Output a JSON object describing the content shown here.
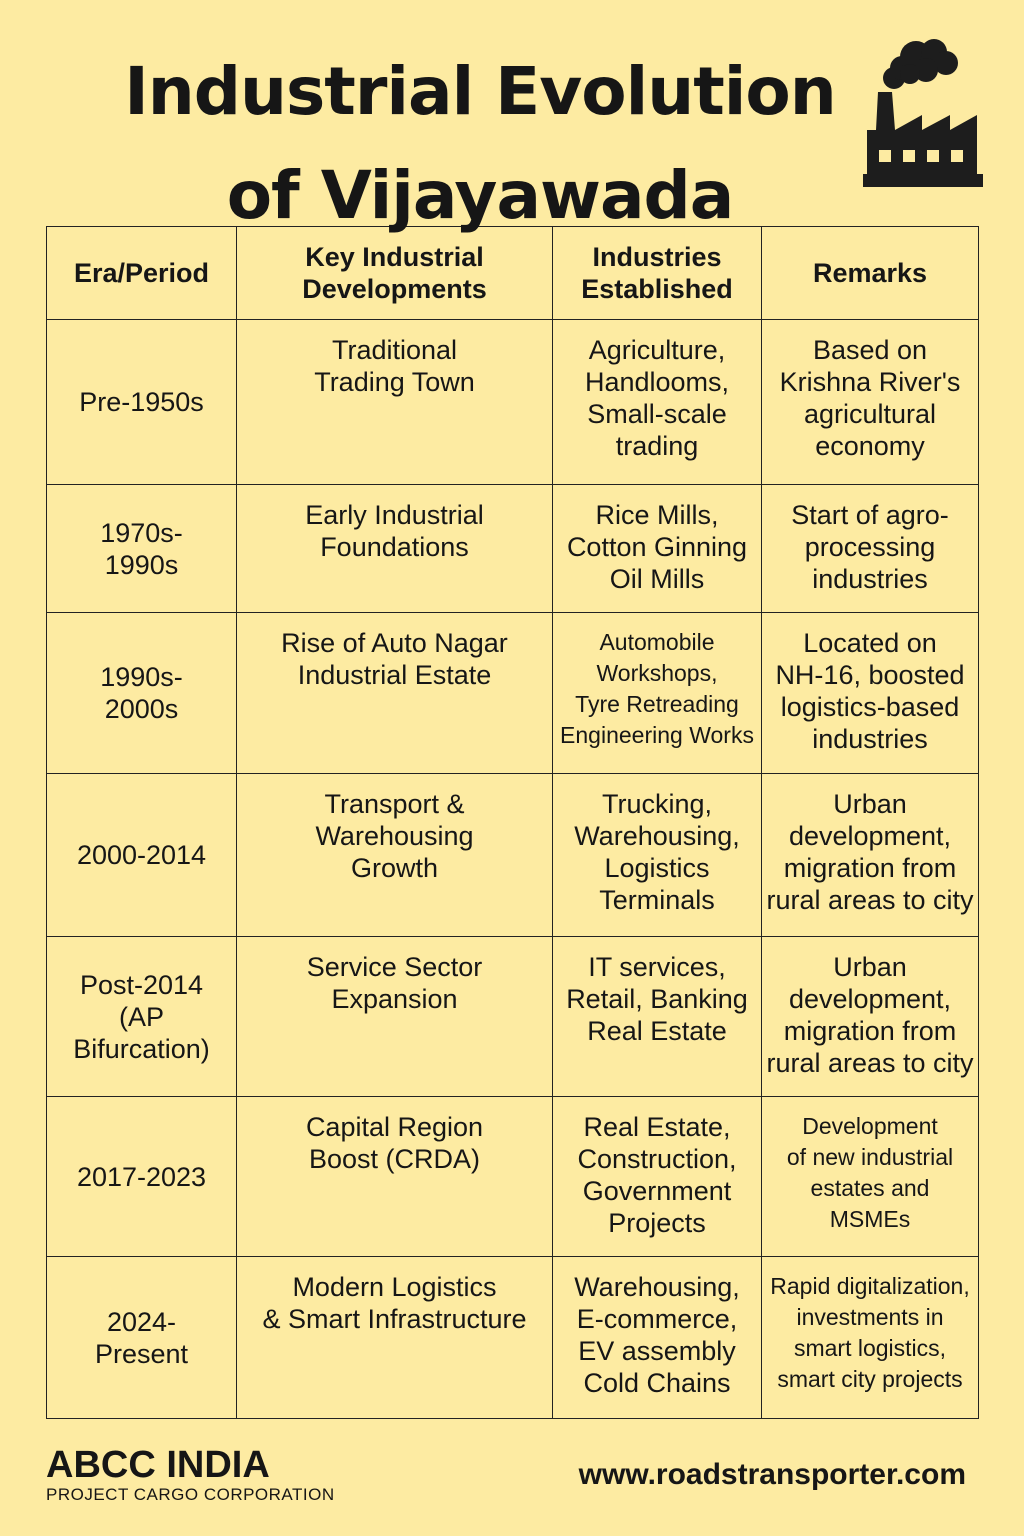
{
  "title": "Industrial Evolution\nof Vijayawada",
  "icon": "factory-icon",
  "colors": {
    "background": "#FDEBA2",
    "text": "#161616"
  },
  "table": {
    "headers": [
      "Era/Period",
      "Key Industrial\nDevelopments",
      "Industries\nEstablished",
      "Remarks"
    ],
    "rows": [
      [
        "Pre-1950s",
        "Traditional\nTrading Town",
        "Agriculture,\nHandlooms,\nSmall-scale\ntrading",
        "Based on\nKrishna River's\nagricultural\neconomy"
      ],
      [
        "1970s-\n1990s",
        "Early Industrial\nFoundations",
        "Rice Mills,\nCotton Ginning\nOil Mills",
        "Start of agro-\nprocessing\nindustries"
      ],
      [
        "1990s-\n2000s",
        "Rise of Auto Nagar\nIndustrial Estate",
        "Automobile\nWorkshops,\nTyre Retreading\nEngineering Works",
        "Located on\nNH-16, boosted\nlogistics-based\nindustries"
      ],
      [
        "2000-2014",
        "Transport &\nWarehousing\nGrowth",
        "Trucking,\nWarehousing,\nLogistics\nTerminals",
        "Urban\ndevelopment,\nmigration from\nrural areas to city"
      ],
      [
        "Post-2014\n(AP Bifurcation)",
        "Service Sector\nExpansion",
        "IT services,\nRetail, Banking\nReal Estate",
        "Urban\ndevelopment,\nmigration from\nrural areas to city"
      ],
      [
        "2017-2023",
        "Capital Region\nBoost (CRDA)",
        "Real Estate,\nConstruction,\nGovernment\nProjects",
        "Development\nof new industrial\nestates and\nMSMEs"
      ],
      [
        "2024-\nPresent",
        "Modern Logistics\n& Smart Infrastructure",
        "Warehousing,\nE-commerce,\nEV assembly\nCold Chains",
        "Rapid digitalization,\ninvestments in\nsmart logistics,\nsmart city projects"
      ]
    ]
  },
  "footer": {
    "brand": "ABCC INDIA",
    "tagline": "PROJECT CARGO CORPORATION",
    "website": "www.roadstransporter.com"
  }
}
